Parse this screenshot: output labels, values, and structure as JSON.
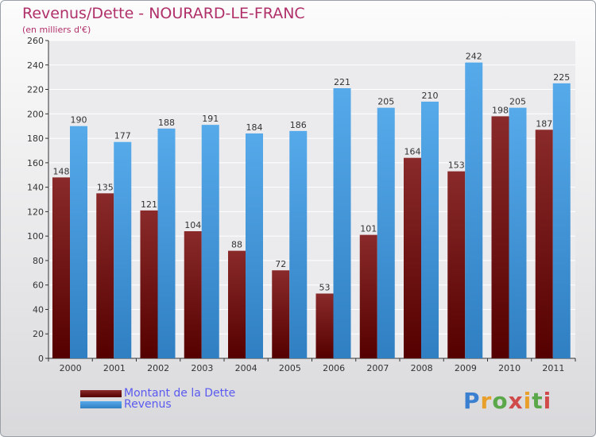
{
  "chart_data": {
    "type": "bar",
    "title": "Revenus/Dette - NOURARD-LE-FRANC",
    "subtitle": "(en milliers d'€)",
    "categories": [
      "2000",
      "2001",
      "2002",
      "2003",
      "2004",
      "2005",
      "2006",
      "2007",
      "2008",
      "2009",
      "2010",
      "2011"
    ],
    "series": [
      {
        "name": "Montant de la Dette",
        "color": "#7a1a1a",
        "values": [
          148,
          135,
          121,
          104,
          88,
          72,
          53,
          101,
          164,
          153,
          198,
          187
        ]
      },
      {
        "name": "Revenus",
        "color": "#4a9fe0",
        "values": [
          190,
          177,
          188,
          191,
          184,
          186,
          221,
          205,
          210,
          242,
          205,
          225
        ]
      }
    ],
    "ylim": [
      0,
      260
    ],
    "yticks": [
      0,
      20,
      40,
      60,
      80,
      100,
      120,
      140,
      160,
      180,
      200,
      220,
      240,
      260
    ],
    "grid": true,
    "legend": "bottom-left"
  },
  "logo": {
    "text": "Proxiti"
  }
}
